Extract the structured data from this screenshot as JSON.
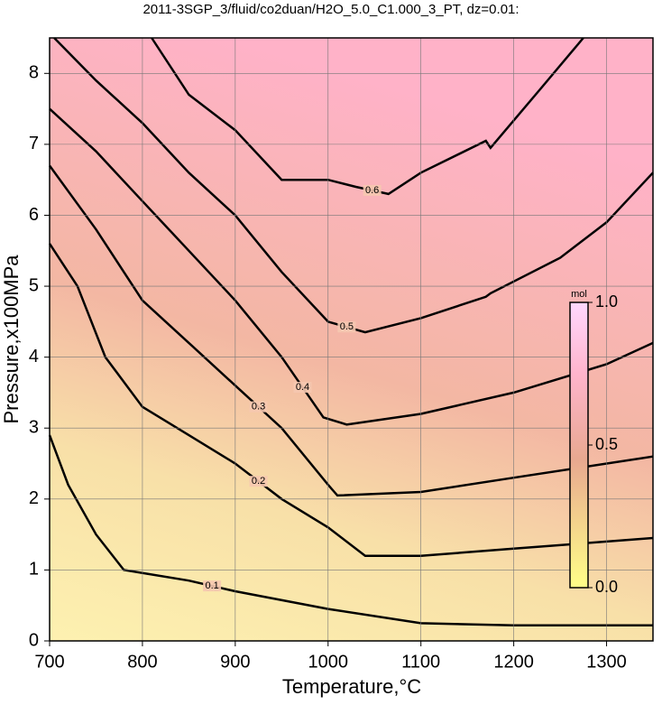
{
  "chart_data": {
    "type": "contour",
    "title": "2011-3SGP_3/fluid/co2duan/H2O_5.0_C1.000_3_PT, dz=0.01:",
    "x_label": "Temperature,°C",
    "y_label": "Pressure,x100MPa",
    "xlim": [
      700,
      1350
    ],
    "ylim": [
      0,
      8.5
    ],
    "xticks": [
      700,
      800,
      900,
      1000,
      1100,
      1200,
      1300
    ],
    "yticks": [
      0,
      1,
      2,
      3,
      4,
      5,
      6,
      7,
      8
    ],
    "grid": true,
    "contours": [
      {
        "level": 0.1,
        "x": [
          700,
          720,
          750,
          780,
          850,
          900,
          1000,
          1100,
          1200,
          1350
        ],
        "y": [
          2.9,
          2.2,
          1.5,
          1.0,
          0.85,
          0.7,
          0.45,
          0.25,
          0.22,
          0.22
        ]
      },
      {
        "level": 0.2,
        "x": [
          700,
          730,
          760,
          800,
          850,
          900,
          950,
          1000,
          1040,
          1100,
          1200,
          1350
        ],
        "y": [
          5.6,
          5.0,
          4.0,
          3.3,
          2.9,
          2.5,
          2.0,
          1.6,
          1.2,
          1.2,
          1.3,
          1.45
        ]
      },
      {
        "level": 0.3,
        "x": [
          700,
          750,
          800,
          850,
          900,
          950,
          1000,
          1010,
          1100,
          1200,
          1350
        ],
        "y": [
          6.7,
          5.8,
          4.8,
          4.2,
          3.6,
          3.0,
          2.2,
          2.05,
          2.1,
          2.3,
          2.6
        ]
      },
      {
        "level": 0.4,
        "x": [
          700,
          750,
          800,
          850,
          900,
          950,
          995,
          1020,
          1100,
          1200,
          1300,
          1350
        ],
        "y": [
          7.5,
          6.9,
          6.2,
          5.5,
          4.8,
          4.0,
          3.15,
          3.05,
          3.2,
          3.5,
          3.9,
          4.2
        ]
      },
      {
        "level": 0.5,
        "x": [
          705,
          750,
          800,
          850,
          900,
          950,
          1000,
          1040,
          1100,
          1170,
          1175,
          1250,
          1300,
          1350
        ],
        "y": [
          8.5,
          7.9,
          7.3,
          6.6,
          6.0,
          5.2,
          4.5,
          4.35,
          4.55,
          4.85,
          4.9,
          5.4,
          5.9,
          6.6
        ]
      },
      {
        "level": 0.6,
        "x": [
          810,
          850,
          900,
          950,
          1000,
          1030,
          1065,
          1100,
          1170,
          1175,
          1230,
          1275
        ],
        "y": [
          8.5,
          7.7,
          7.2,
          6.5,
          6.5,
          6.4,
          6.3,
          6.6,
          7.05,
          6.95,
          7.8,
          8.5
        ]
      }
    ],
    "colorbar": {
      "label": "mol",
      "lim": [
        0,
        1
      ],
      "ticks": [
        {
          "value": 0,
          "label": "0.0"
        },
        {
          "value": 0.5,
          "label": "0.5"
        },
        {
          "value": 1,
          "label": "1.0"
        }
      ]
    }
  }
}
